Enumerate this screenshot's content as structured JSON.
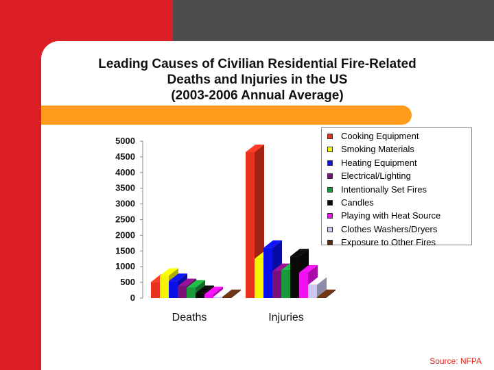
{
  "title_lines": [
    "Leading Causes of Civilian Residential Fire-Related",
    "Deaths and Injuries in the US",
    "(2003-2006 Annual Average)"
  ],
  "source": "Source: NFPA",
  "colors": {
    "background": "#4d4d4d",
    "accent_red": "#dc1f26",
    "accent_orange": "#ff9a1a",
    "panel": "#ffffff"
  },
  "chart_data": {
    "type": "bar",
    "title": "Leading Causes of Civilian Residential Fire-Related Deaths and Injuries in the US (2003-2006 Annual Average)",
    "categories": [
      "Deaths",
      "Injuries"
    ],
    "yticks": [
      0,
      500,
      1000,
      1500,
      2000,
      2500,
      3000,
      3500,
      4000,
      4500,
      5000
    ],
    "ylim": [
      0,
      5000
    ],
    "legend_position": "top-right",
    "grid": false,
    "series": [
      {
        "name": "Cooking Equipment",
        "color": "#e8311e",
        "values": [
          510,
          4650
        ]
      },
      {
        "name": "Smoking Materials",
        "color": "#f5f500",
        "values": [
          710,
          1250
        ]
      },
      {
        "name": "Heating Equipment",
        "color": "#0b10e8",
        "values": [
          540,
          1600
        ]
      },
      {
        "name": "Electrical/Lighting",
        "color": "#7a0f7a",
        "values": [
          380,
          860
        ]
      },
      {
        "name": "Intentionally Set Fires",
        "color": "#1a9a3a",
        "values": [
          330,
          890
        ]
      },
      {
        "name": "Candles",
        "color": "#0a0a0a",
        "values": [
          160,
          1330
        ]
      },
      {
        "name": "Playing with Heat Source",
        "color": "#f010f0",
        "values": [
          120,
          810
        ]
      },
      {
        "name": "Clothes Washers/Dryers",
        "color": "#c8c8f0",
        "values": [
          40,
          420
        ]
      },
      {
        "name": "Exposure to Other Fires",
        "color": "#5a2a10",
        "values": [
          30,
          30
        ]
      }
    ]
  }
}
